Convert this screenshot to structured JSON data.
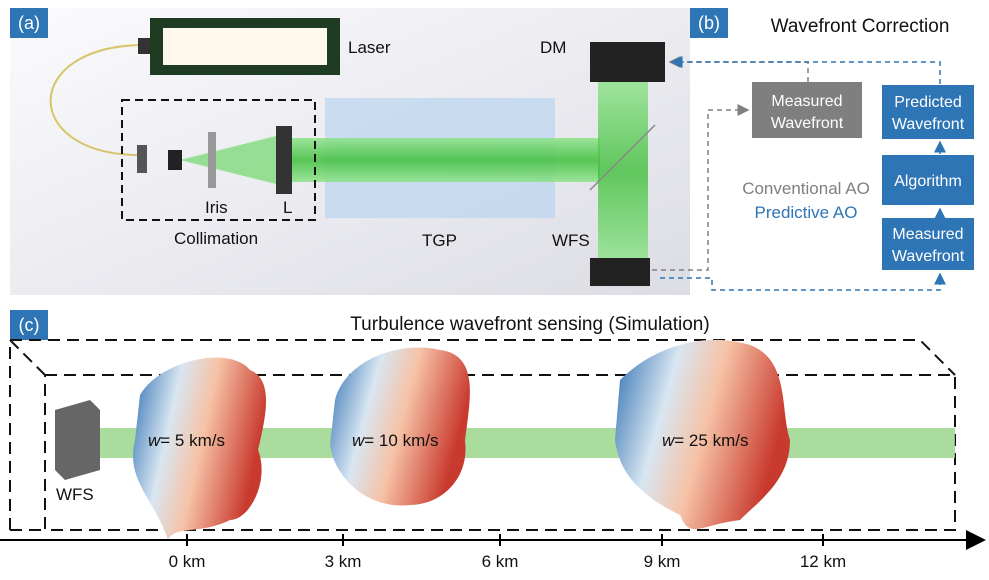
{
  "panel_a": {
    "label": "(a)",
    "laser": "Laser",
    "dm": "DM",
    "iris": "Iris",
    "lens": "L",
    "collimation": "Collimation",
    "tgp": "TGP",
    "wfs": "WFS"
  },
  "panel_b": {
    "label": "(b)",
    "title": "Wavefront Correction",
    "measured_conventional": [
      "Measured",
      "Wavefront"
    ],
    "predicted": [
      "Predicted",
      "Wavefront"
    ],
    "algorithm": "Algorithm",
    "measured_predictive": [
      "Measured",
      "Wavefront"
    ],
    "legend_conventional": "Conventional AO",
    "legend_predictive": "Predictive AO"
  },
  "panel_c": {
    "label": "(c)",
    "title": "Turbulence wavefront sensing (Simulation)",
    "wfs": "WFS",
    "layers": [
      {
        "symbol": "w",
        "text": "= 5 km/s"
      },
      {
        "symbol": "w",
        "text": "= 10 km/s"
      },
      {
        "symbol": "w",
        "text": "= 25 km/s"
      }
    ],
    "distances": [
      "0 km",
      "3 km",
      "6 km",
      "9 km",
      "12 km"
    ]
  }
}
